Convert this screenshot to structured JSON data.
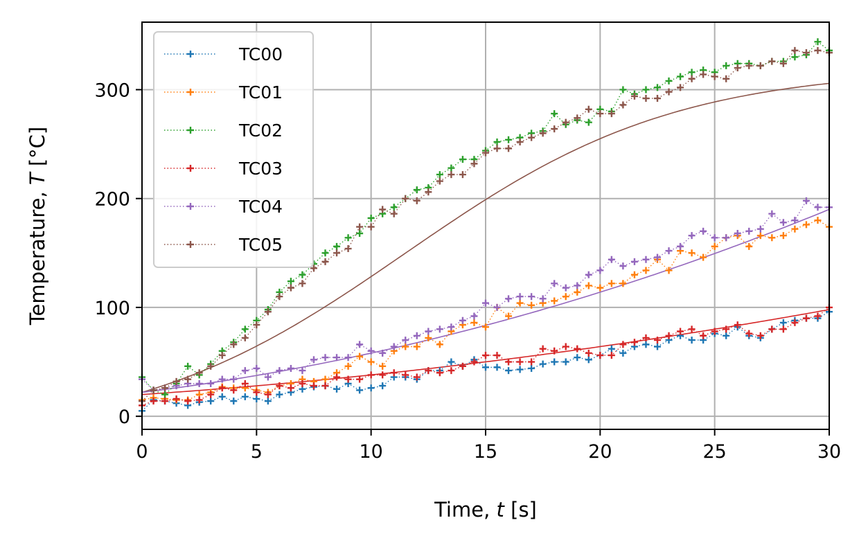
{
  "chart_data": {
    "type": "line",
    "xlabel_text": "Time, ",
    "xlabel_var": "t",
    "xlabel_unit": " [s]",
    "ylabel_text": "Temperature, ",
    "ylabel_var": "T",
    "ylabel_unit": " [°C]",
    "xlim": [
      0,
      30
    ],
    "ylim": [
      -12,
      362
    ],
    "xticks": [
      0,
      5,
      10,
      15,
      20,
      25,
      30
    ],
    "yticks": [
      0,
      100,
      200,
      300
    ],
    "grid": true,
    "legend_position": "upper-left",
    "x": [
      0,
      0.5,
      1,
      1.5,
      2,
      2.5,
      3,
      3.5,
      4,
      4.5,
      5,
      5.5,
      6,
      6.5,
      7,
      7.5,
      8,
      8.5,
      9,
      9.5,
      10,
      10.5,
      11,
      11.5,
      12,
      12.5,
      13,
      13.5,
      14,
      14.5,
      15,
      15.5,
      16,
      16.5,
      17,
      17.5,
      18,
      18.5,
      19,
      19.5,
      20,
      20.5,
      21,
      21.5,
      22,
      22.5,
      23,
      23.5,
      24,
      24.5,
      25,
      25.5,
      26,
      26.5,
      27,
      27.5,
      28,
      28.5,
      29,
      29.5,
      30
    ],
    "series": [
      {
        "name": "TC00",
        "color": "#1f77b4",
        "values": [
          5,
          15,
          14,
          12,
          10,
          13,
          14,
          18,
          14,
          18,
          16,
          14,
          20,
          22,
          25,
          27,
          28,
          25,
          30,
          24,
          26,
          28,
          36,
          36,
          34,
          42,
          42,
          50,
          46,
          52,
          45,
          45,
          42,
          43,
          44,
          48,
          50,
          50,
          54,
          52,
          56,
          62,
          58,
          64,
          66,
          64,
          70,
          74,
          70,
          70,
          76,
          74,
          82,
          74,
          72,
          80,
          86,
          88,
          90,
          90,
          96
        ]
      },
      {
        "name": "TC01",
        "color": "#ff7f0e",
        "values": [
          15,
          17,
          16,
          15,
          15,
          20,
          22,
          27,
          26,
          26,
          24,
          22,
          28,
          30,
          34,
          32,
          34,
          40,
          46,
          55,
          50,
          46,
          60,
          64,
          64,
          72,
          66,
          78,
          84,
          86,
          82,
          100,
          92,
          104,
          102,
          104,
          106,
          110,
          114,
          120,
          118,
          122,
          122,
          130,
          134,
          144,
          134,
          152,
          150,
          146,
          156,
          164,
          166,
          156,
          166,
          164,
          166,
          172,
          176,
          180,
          174
        ]
      },
      {
        "name": "TC02",
        "color": "#2ca02c",
        "values": [
          36,
          24,
          20,
          30,
          46,
          38,
          48,
          60,
          68,
          80,
          88,
          98,
          114,
          124,
          130,
          140,
          150,
          156,
          164,
          168,
          182,
          186,
          192,
          200,
          208,
          210,
          222,
          228,
          236,
          236,
          244,
          252,
          254,
          256,
          260,
          262,
          278,
          268,
          272,
          270,
          282,
          280,
          300,
          296,
          300,
          302,
          308,
          312,
          316,
          318,
          316,
          322,
          324,
          324,
          322,
          326,
          326,
          330,
          332,
          344,
          336
        ]
      },
      {
        "name": "TC03",
        "color": "#d62728",
        "values": [
          10,
          14,
          14,
          16,
          14,
          15,
          20,
          26,
          24,
          30,
          22,
          20,
          28,
          26,
          30,
          28,
          28,
          36,
          34,
          34,
          38,
          38,
          40,
          38,
          36,
          42,
          40,
          42,
          46,
          50,
          56,
          56,
          50,
          50,
          50,
          62,
          60,
          64,
          62,
          58,
          56,
          56,
          66,
          68,
          72,
          70,
          74,
          78,
          80,
          74,
          78,
          80,
          84,
          76,
          74,
          80,
          80,
          86,
          90,
          92,
          100
        ]
      },
      {
        "name": "TC04",
        "color": "#9467bd",
        "values": [
          34,
          24,
          26,
          28,
          30,
          30,
          30,
          34,
          34,
          42,
          44,
          36,
          42,
          44,
          42,
          52,
          54,
          54,
          54,
          66,
          60,
          58,
          64,
          70,
          74,
          78,
          80,
          82,
          88,
          92,
          104,
          100,
          108,
          110,
          110,
          108,
          122,
          118,
          120,
          130,
          134,
          144,
          138,
          142,
          144,
          146,
          152,
          156,
          166,
          170,
          164,
          164,
          168,
          170,
          172,
          186,
          178,
          180,
          198,
          192,
          192
        ]
      },
      {
        "name": "TC05",
        "color": "#8c564b",
        "values": [
          14,
          24,
          26,
          32,
          34,
          40,
          46,
          56,
          66,
          72,
          84,
          96,
          110,
          118,
          122,
          136,
          142,
          150,
          154,
          174,
          174,
          190,
          186,
          200,
          198,
          206,
          216,
          222,
          222,
          232,
          242,
          246,
          246,
          252,
          256,
          260,
          264,
          270,
          274,
          282,
          278,
          278,
          286,
          294,
          292,
          292,
          298,
          302,
          310,
          314,
          312,
          310,
          320,
          322,
          322,
          326,
          324,
          336,
          334,
          336,
          334
        ]
      }
    ],
    "fits": [
      {
        "color": "#8c564b",
        "model": "logistic",
        "params": {
          "base": 22,
          "amplitude": 340,
          "rate": 0.17,
          "midpoint": 11.5
        }
      },
      {
        "color": "#9467bd",
        "model": "polynomial",
        "coeffs": [
          22,
          2.6,
          0.1
        ]
      },
      {
        "color": "#d62728",
        "model": "polynomial",
        "coeffs": [
          20,
          1.4,
          0.04
        ]
      }
    ]
  }
}
